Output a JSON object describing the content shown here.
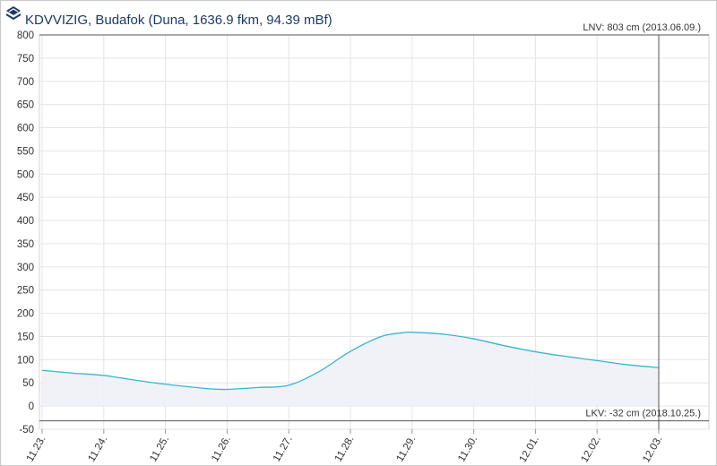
{
  "header": {
    "title": "KDVVIZIG, Budafok (Duna, 1636.9 fkm, 94.39 mBf)",
    "logo_icon": "kdvvizig-logo-icon"
  },
  "colors": {
    "series": "#37b4d4",
    "area": "#eef1f6",
    "grid": "#e4e4e4",
    "ref_line": "#555555",
    "title": "#1d3a66"
  },
  "chart_data": {
    "type": "area",
    "title": "KDVVIZIG, Budafok (Duna, 1636.9 fkm, 94.39 mBf)",
    "xlabel": "",
    "ylabel": "",
    "grid": true,
    "categories": [
      "11.23.",
      "11.24.",
      "11.25.",
      "11.26.",
      "11.27.",
      "11.28.",
      "11.29.",
      "11.30.",
      "12.01.",
      "12.02.",
      "12.03."
    ],
    "ylim": [
      -50,
      800
    ],
    "yticks": [
      -50,
      0,
      50,
      100,
      150,
      200,
      250,
      300,
      350,
      400,
      450,
      500,
      550,
      600,
      650,
      700,
      750,
      800
    ],
    "series": [
      {
        "x": [
          0,
          0.5,
          1,
          1.5,
          2,
          2.5,
          2.75,
          3,
          3.5,
          4,
          4.5,
          5,
          5.5,
          5.85,
          6,
          6.5,
          7,
          7.5,
          8,
          8.5,
          9,
          9.5,
          10
        ],
        "values": [
          77,
          71,
          66,
          56,
          47,
          40,
          37,
          36,
          40,
          45,
          75,
          118,
          150,
          158,
          159,
          155,
          145,
          130,
          117,
          107,
          98,
          89,
          83
        ]
      }
    ],
    "reference_lines": [
      {
        "label": "LNV: 803 cm (2013.06.09.)",
        "value": 803
      },
      {
        "label": "LKV: -32 cm (2018.10.25.)",
        "value": -32
      }
    ],
    "marker_x": "12.03."
  }
}
